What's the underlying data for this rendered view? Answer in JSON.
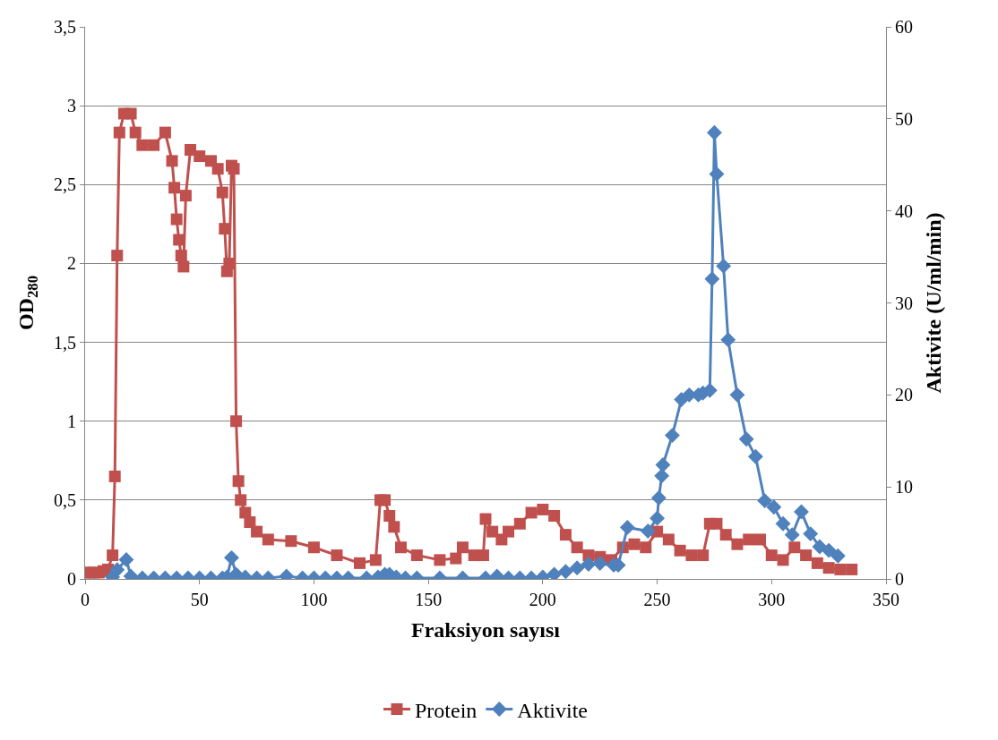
{
  "chart_data": {
    "type": "line",
    "xlabel": "Fraksiyon sayısı",
    "ylabel": "OD$_{280}$",
    "y2label": "Aktivite (U/ml/min)",
    "xlim": [
      0,
      350
    ],
    "xticks": [
      0,
      50,
      100,
      150,
      200,
      250,
      300,
      350
    ],
    "ylim": [
      0,
      3.5
    ],
    "yticks": [
      0,
      {
        "value": 0.5,
        "label": "0,5"
      },
      1,
      {
        "value": 1.5,
        "label": "1,5"
      },
      2,
      {
        "value": 2.5,
        "label": "2,5"
      },
      3,
      {
        "value": 3.5,
        "label": "3,5"
      }
    ],
    "y2lim": [
      0,
      60
    ],
    "y2ticks": [
      0,
      10,
      20,
      30,
      40,
      50,
      60
    ],
    "grid": "y",
    "legend": "bottom",
    "line_style": "solid",
    "series": [
      {
        "name": "Protein",
        "color": "#c0504d",
        "marker": "square",
        "x": [
          0,
          2,
          4,
          6,
          8,
          10,
          12,
          13,
          14,
          15,
          17,
          20,
          22,
          25,
          30,
          35,
          38,
          39,
          40,
          41,
          42,
          43,
          44,
          46,
          50,
          55,
          58,
          60,
          61,
          62,
          63,
          64,
          65,
          66,
          67,
          68,
          70,
          72,
          75,
          80,
          90,
          100,
          110,
          120,
          127,
          129,
          131,
          133,
          135,
          138,
          145,
          155,
          162,
          165,
          170,
          174,
          175,
          178,
          182,
          185,
          190,
          195,
          200,
          205,
          210,
          215,
          220,
          225,
          230,
          235,
          240,
          245,
          250,
          255,
          260,
          265,
          270,
          273,
          276,
          280,
          285,
          290,
          295,
          300,
          305,
          310,
          315,
          320,
          325,
          330,
          335
        ],
        "values": [
          0.04,
          0.04,
          0.04,
          0.04,
          0.05,
          0.06,
          0.15,
          0.65,
          2.05,
          2.83,
          2.95,
          2.95,
          2.83,
          2.75,
          2.75,
          2.83,
          2.65,
          2.48,
          2.28,
          2.15,
          2.05,
          1.98,
          2.43,
          2.72,
          2.68,
          2.65,
          2.6,
          2.45,
          2.22,
          1.95,
          2.0,
          2.62,
          2.6,
          1.0,
          0.62,
          0.5,
          0.42,
          0.36,
          0.3,
          0.25,
          0.24,
          0.2,
          0.15,
          0.1,
          0.12,
          0.5,
          0.5,
          0.4,
          0.33,
          0.2,
          0.15,
          0.12,
          0.13,
          0.2,
          0.15,
          0.15,
          0.38,
          0.3,
          0.25,
          0.3,
          0.35,
          0.42,
          0.44,
          0.4,
          0.28,
          0.2,
          0.15,
          0.14,
          0.12,
          0.2,
          0.22,
          0.2,
          0.3,
          0.25,
          0.18,
          0.15,
          0.15,
          0.35,
          0.35,
          0.28,
          0.22,
          0.25,
          0.25,
          0.15,
          0.12,
          0.2,
          0.15,
          0.1,
          0.07,
          0.06,
          0.06
        ]
      },
      {
        "name": "Aktivite",
        "color": "#4f81bd",
        "marker": "diamond",
        "axis": "y2",
        "x": [
          12,
          14,
          18,
          20,
          25,
          30,
          35,
          40,
          45,
          50,
          55,
          60,
          62,
          64,
          66,
          70,
          75,
          80,
          88,
          95,
          100,
          105,
          110,
          115,
          123,
          128,
          131,
          133,
          136,
          140,
          145,
          155,
          165,
          175,
          180,
          185,
          190,
          195,
          200,
          205,
          210,
          215,
          220,
          225,
          231,
          233,
          237,
          246,
          250,
          250.7,
          252,
          252.5,
          256.6,
          260.6,
          264,
          268,
          270,
          273,
          274,
          275,
          276,
          279,
          281,
          285,
          289,
          293,
          297,
          301,
          305,
          309,
          313,
          317,
          321,
          325,
          329
        ],
        "values": [
          0.2,
          1.0,
          2.1,
          0.3,
          0.1,
          0.1,
          0.1,
          0.1,
          0.1,
          0.1,
          0.1,
          0.1,
          0.2,
          2.3,
          0.5,
          0.2,
          0.1,
          0.1,
          0.3,
          0.1,
          0.1,
          0.1,
          0.1,
          0.1,
          0.1,
          0.2,
          0.5,
          0.5,
          0.2,
          0.1,
          0.1,
          0.1,
          0.1,
          0.1,
          0.3,
          0.1,
          0.1,
          0.1,
          0.2,
          0.5,
          0.8,
          1.2,
          1.6,
          1.7,
          1.5,
          1.5,
          5.6,
          5.2,
          6.6,
          8.8,
          11.2,
          12.4,
          15.6,
          19.5,
          20.0,
          20.0,
          20.2,
          20.5,
          32.6,
          48.5,
          44.0,
          34.0,
          26.0,
          20.0,
          15.2,
          13.3,
          8.5,
          7.8,
          6.0,
          4.8,
          7.3,
          4.9,
          3.5,
          3.1,
          2.5
        ]
      }
    ]
  }
}
